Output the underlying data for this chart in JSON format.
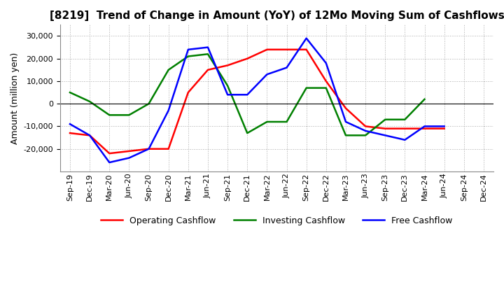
{
  "title": "[8219]  Trend of Change in Amount (YoY) of 12Mo Moving Sum of Cashflows",
  "ylabel": "Amount (million yen)",
  "x_labels": [
    "Sep-19",
    "Dec-19",
    "Mar-20",
    "Jun-20",
    "Sep-20",
    "Dec-20",
    "Mar-21",
    "Jun-21",
    "Sep-21",
    "Dec-21",
    "Mar-22",
    "Jun-22",
    "Sep-22",
    "Dec-22",
    "Mar-23",
    "Jun-23",
    "Sep-23",
    "Dec-23",
    "Mar-24",
    "Jun-24",
    "Sep-24",
    "Dec-24"
  ],
  "operating": [
    -13000,
    -14000,
    -22000,
    -21000,
    -20000,
    -20000,
    5000,
    15000,
    17000,
    20000,
    24000,
    24000,
    24000,
    10000,
    -2000,
    -10000,
    -11000,
    -11000,
    -11000,
    -11000,
    null,
    null
  ],
  "investing": [
    5000,
    1000,
    -5000,
    -5000,
    0,
    15000,
    21000,
    22000,
    8000,
    -13000,
    -8000,
    -8000,
    7000,
    7000,
    -14000,
    -14000,
    -7000,
    -7000,
    2000,
    null,
    null,
    null
  ],
  "free": [
    -9000,
    -14000,
    -26000,
    -24000,
    -20000,
    -3000,
    24000,
    25000,
    4000,
    4000,
    13000,
    16000,
    29000,
    18000,
    -8000,
    -12000,
    -14000,
    -16000,
    -10000,
    -10000,
    null,
    null
  ],
  "colors": {
    "operating": "#FF0000",
    "investing": "#008000",
    "free": "#0000FF"
  },
  "ylim": [
    -30000,
    35000
  ],
  "yticks": [
    -20000,
    -10000,
    0,
    10000,
    20000,
    30000
  ],
  "background_color": "#ffffff",
  "grid_color": "#aaaaaa",
  "title_fontsize": 11,
  "tick_fontsize": 8,
  "legend_fontsize": 9
}
